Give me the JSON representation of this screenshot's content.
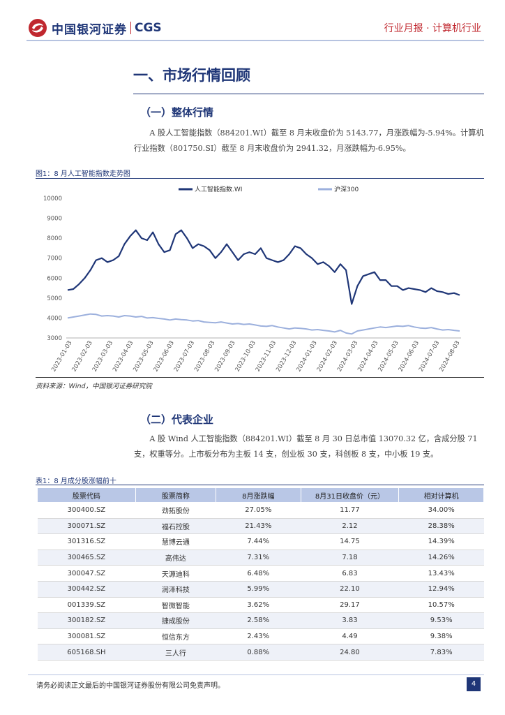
{
  "header": {
    "logo_cn": "中国银河证券",
    "logo_en": "CGS",
    "report_tag": "行业月报 · 计算机行业"
  },
  "section": {
    "title": "一、市场行情回顾"
  },
  "sub1": {
    "title": "（一）整体行情",
    "paragraph": "A 股人工智能指数（884201.WI）截至 8 月末收盘价为 5143.77，月涨跌幅为-5.94%。计算机行业指数（801750.SI）截至 8 月末收盘价为 2941.32，月涨跌幅为-6.95%。"
  },
  "figure": {
    "caption": "图1：8 月人工智能指数走势图",
    "source": "资料来源：Wind，中国银河证券研究院"
  },
  "chart_data": {
    "type": "line",
    "title": "",
    "xlabel": "",
    "ylabel": "",
    "ylim": [
      3000,
      10000
    ],
    "yticks": [
      "10000",
      "9000",
      "8000",
      "7000",
      "6000",
      "5000",
      "4000",
      "3000"
    ],
    "xticks": [
      "2023-01-03",
      "2023-02-03",
      "2023-03-03",
      "2023-04-03",
      "2023-05-03",
      "2023-06-03",
      "2023-07-03",
      "2023-08-03",
      "2023-09-03",
      "2023-10-03",
      "2023-11-03",
      "2023-12-03",
      "2024-01-03",
      "2024-02-03",
      "2024-03-03",
      "2024-04-03",
      "2024-05-03",
      "2024-06-03",
      "2024-07-03",
      "2024-08-03"
    ],
    "legend_position": "top",
    "series": [
      {
        "name": "人工智能指数.WI",
        "color": "#1f3677",
        "values": [
          5400,
          5450,
          5700,
          6000,
          6400,
          6900,
          7000,
          6800,
          6900,
          7100,
          7700,
          8100,
          8400,
          8000,
          7900,
          8300,
          7700,
          7300,
          7400,
          8200,
          8400,
          8000,
          7500,
          7700,
          7600,
          7400,
          7000,
          7300,
          7700,
          7300,
          6900,
          7200,
          7300,
          7200,
          7500,
          7000,
          6900,
          6800,
          6900,
          7200,
          7600,
          7500,
          7200,
          7000,
          6700,
          6800,
          6600,
          6300,
          6700,
          6400,
          4700,
          5600,
          6100,
          6200,
          6300,
          5900,
          5900,
          5600,
          5600,
          5400,
          5500,
          5450,
          5400,
          5300,
          5500,
          5350,
          5300,
          5200,
          5250,
          5150
        ]
      },
      {
        "name": "沪深300",
        "color": "#9cb0dd",
        "values": [
          4000,
          4050,
          4100,
          4150,
          4200,
          4180,
          4100,
          4120,
          4100,
          4050,
          4120,
          4100,
          4050,
          4080,
          4000,
          4020,
          3980,
          3950,
          3900,
          3950,
          3920,
          3900,
          3850,
          3870,
          3800,
          3780,
          3760,
          3800,
          3750,
          3700,
          3720,
          3680,
          3700,
          3650,
          3600,
          3580,
          3620,
          3550,
          3500,
          3450,
          3500,
          3480,
          3450,
          3400,
          3420,
          3380,
          3350,
          3300,
          3380,
          3250,
          3200,
          3350,
          3400,
          3450,
          3500,
          3550,
          3520,
          3560,
          3600,
          3580,
          3620,
          3550,
          3500,
          3480,
          3520,
          3450,
          3400,
          3420,
          3380,
          3350
        ]
      }
    ]
  },
  "sub2": {
    "title": "（二）代表企业",
    "paragraph": "A 股 Wind 人工智能指数（884201.WI）截至 8 月 30 日总市值 13070.32 亿，含成分股 71 支，权重等分。上市板分布为主板 14 支，创业板 30 支，科创板 8 支，中小板 19 支。"
  },
  "table": {
    "caption": "表1：8 月成分股涨幅前十",
    "headers": [
      "股票代码",
      "股票简称",
      "8月涨跌幅",
      "8月31日收盘价（元）",
      "相对计算机"
    ],
    "rows": [
      [
        "300400.SZ",
        "劲拓股份",
        "27.05%",
        "11.77",
        "34.00%"
      ],
      [
        "300071.SZ",
        "福石控股",
        "21.43%",
        "2.12",
        "28.38%"
      ],
      [
        "301316.SZ",
        "慧博云通",
        "7.44%",
        "14.75",
        "14.39%"
      ],
      [
        "300465.SZ",
        "高伟达",
        "7.31%",
        "7.18",
        "14.26%"
      ],
      [
        "300047.SZ",
        "天源迪科",
        "6.48%",
        "6.83",
        "13.43%"
      ],
      [
        "300442.SZ",
        "润泽科技",
        "5.99%",
        "22.10",
        "12.94%"
      ],
      [
        "001339.SZ",
        "智微智能",
        "3.62%",
        "29.17",
        "10.57%"
      ],
      [
        "300182.SZ",
        "捷成股份",
        "2.58%",
        "3.83",
        "9.53%"
      ],
      [
        "300081.SZ",
        "恒信东方",
        "2.43%",
        "4.49",
        "9.38%"
      ],
      [
        "605168.SH",
        "三人行",
        "0.88%",
        "24.80",
        "7.83%"
      ]
    ]
  },
  "footer": {
    "disclaimer": "请务必阅读正文最后的中国银河证券股份有限公司免责声明。",
    "page": "4"
  }
}
